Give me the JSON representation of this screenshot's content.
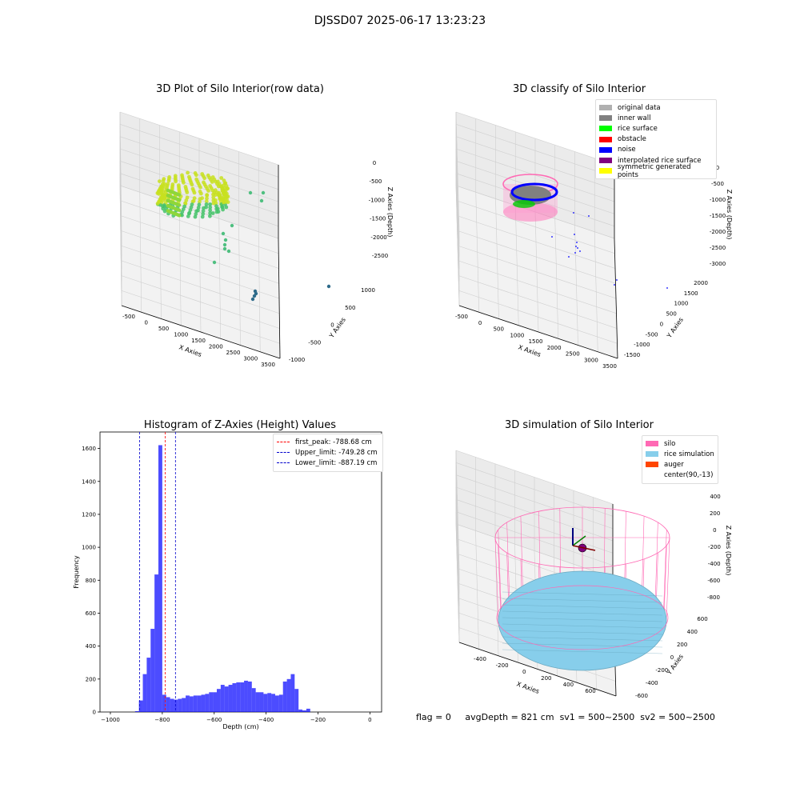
{
  "page": {
    "title": "DJSSD07 2025-06-17 13:23:23"
  },
  "titles": {
    "raw": "3D Plot of Silo Interior(row data)",
    "classify": "3D classify of Silo Interior",
    "hist": "Histogram of Z-Axies (Height) Values",
    "sim": "3D simulation of Silo Interior"
  },
  "axes": {
    "x": "X Axies",
    "y": "Y Axies",
    "z": "Z Axies (Depth)",
    "raw_x_ticks": [
      "-500",
      "0",
      "500",
      "1000",
      "1500",
      "2000",
      "2500",
      "3000",
      "3500"
    ],
    "raw_y_ticks": [
      "-1000",
      "-500",
      "0",
      "500",
      "1000"
    ],
    "raw_z_ticks": [
      "0",
      "-500",
      "-1000",
      "-1500",
      "-2000",
      "-2500"
    ],
    "cls_x_ticks": [
      "-500",
      "0",
      "500",
      "1000",
      "1500",
      "2000",
      "2500",
      "3000",
      "3500"
    ],
    "cls_y_ticks": [
      "-1500",
      "-1000",
      "-500",
      "0",
      "500",
      "1000",
      "1500",
      "2000"
    ],
    "cls_z_ticks": [
      "0",
      "-500",
      "-1000",
      "-1500",
      "-2000",
      "-2500",
      "-3000"
    ],
    "sim_x_ticks": [
      "-400",
      "-200",
      "0",
      "200",
      "400",
      "600"
    ],
    "sim_y_ticks": [
      "-600",
      "-400",
      "-200",
      "0",
      "200",
      "400",
      "600"
    ],
    "sim_z_ticks": [
      "400",
      "200",
      "0",
      "-200",
      "-400",
      "-600",
      "-800"
    ]
  },
  "classify_legend": [
    {
      "label": "original data",
      "color": "#b0b0b0"
    },
    {
      "label": "inner wall",
      "color": "#808080"
    },
    {
      "label": "rice surface",
      "color": "#00ff00"
    },
    {
      "label": "obstacle",
      "color": "#ff0000"
    },
    {
      "label": "noise",
      "color": "#0000ff"
    },
    {
      "label": "interpolated rice surface",
      "color": "#800080"
    },
    {
      "label": "symmetric generated points",
      "color": "#ffff00"
    }
  ],
  "sim_legend": [
    {
      "label": "silo",
      "color": "#ff69b4"
    },
    {
      "label": "rice simulation",
      "color": "#87ceeb"
    },
    {
      "label": "auger",
      "color": "#ff4500"
    },
    {
      "label": "center(90,-13)",
      "color": "#ffffff"
    }
  ],
  "status": {
    "flag": "flag = 0",
    "avg": "avgDepth = 821 cm",
    "sv1": "sv1 = 500~2500",
    "sv2": "sv2 = 500~2500"
  },
  "chart_data": [
    {
      "type": "scatter",
      "title": "3D Plot of Silo Interior(row data)",
      "xlabel": "X Axies",
      "ylabel": "Y Axies",
      "zlabel": "Z Axies (Depth)",
      "xlim": [
        -700,
        3600
      ],
      "ylim": [
        -1100,
        1200
      ],
      "zlim": [
        -2900,
        100
      ]
    },
    {
      "type": "scatter",
      "title": "3D classify of Silo Interior",
      "xlabel": "X Axies",
      "ylabel": "Y Axies",
      "zlabel": "Z Axies (Depth)",
      "xlim": [
        -700,
        3600
      ],
      "ylim": [
        -1700,
        2100
      ],
      "zlim": [
        -3200,
        100
      ],
      "legend": "top-right"
    },
    {
      "type": "bar",
      "title": "Histogram of Z-Axies (Height) Values",
      "xlabel": "Depth (cm)",
      "ylabel": "Frequency",
      "xlim": [
        -1040,
        45
      ],
      "ylim": [
        0,
        1700
      ],
      "x_ticks": [
        -1000,
        -800,
        -600,
        -400,
        -200,
        0
      ],
      "y_ticks": [
        0,
        200,
        400,
        600,
        800,
        1000,
        1200,
        1400,
        1600
      ],
      "bin_start": -905,
      "bin_width": 15,
      "values": [
        5,
        70,
        230,
        330,
        505,
        835,
        1620,
        105,
        90,
        80,
        75,
        80,
        85,
        100,
        95,
        100,
        100,
        105,
        110,
        120,
        120,
        140,
        165,
        155,
        165,
        175,
        180,
        180,
        190,
        185,
        145,
        120,
        120,
        110,
        115,
        110,
        100,
        105,
        185,
        200,
        230,
        140,
        15,
        10,
        20
      ],
      "lines": [
        {
          "name": "first_peak: -788.68 cm",
          "x": -788.68,
          "color": "#ff0000"
        },
        {
          "name": "Upper_limit: -749.28 cm",
          "x": -749.28,
          "color": "#0000cc"
        },
        {
          "name": "Lower_limit: -887.19 cm",
          "x": -887.19,
          "color": "#0000cc"
        }
      ],
      "legend": "top-right"
    },
    {
      "type": "scatter",
      "title": "3D simulation of Silo Interior",
      "xlabel": "X Axies",
      "ylabel": "Y Axies",
      "zlabel": "Z Axies (Depth)",
      "xlim": [
        -500,
        700
      ],
      "ylim": [
        -700,
        700
      ],
      "zlim": [
        -900,
        500
      ],
      "legend": "top-right"
    }
  ]
}
